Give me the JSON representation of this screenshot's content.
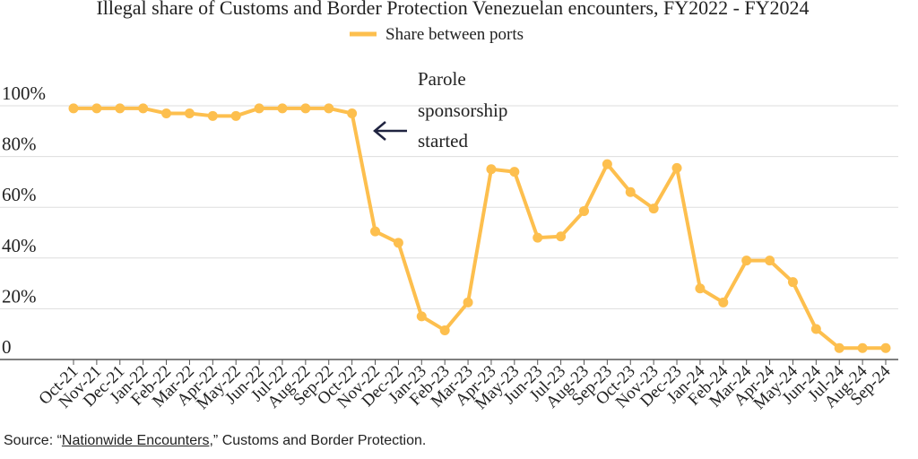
{
  "chart_data": {
    "type": "line",
    "title": "Illegal share of Customs and Border Protection Venezuelan encounters, FY2022 - FY2024",
    "legend": {
      "placement": "top-center"
    },
    "series": [
      {
        "name": "Share between ports",
        "color": "#FDBF4E",
        "values": [
          99,
          99,
          99,
          99,
          97,
          97,
          96,
          96,
          99,
          99,
          99,
          99,
          97,
          50.5,
          46,
          17,
          11.5,
          22.5,
          75,
          74,
          48,
          48.5,
          58.5,
          77,
          66,
          59.5,
          75.5,
          28,
          22.5,
          39,
          39,
          30.5,
          12,
          4.5,
          4.5,
          4.5
        ]
      }
    ],
    "categories": [
      "Oct-21",
      "Nov-21",
      "Dec-21",
      "Jan-22",
      "Feb-22",
      "Mar-22",
      "Apr-22",
      "May-22",
      "Jun-22",
      "Jul-22",
      "Aug-22",
      "Sep-22",
      "Oct-22",
      "Nov-22",
      "Dec-22",
      "Jan-23",
      "Feb-23",
      "Mar-23",
      "Apr-23",
      "May-23",
      "Jun-23",
      "Jul-23",
      "Aug-23",
      "Sep-23",
      "Oct-23",
      "Nov-23",
      "Dec-23",
      "Jan-24",
      "Feb-24",
      "Mar-24",
      "Apr-24",
      "May-24",
      "Jun-24",
      "Jul-24",
      "Aug-24",
      "Sep-24"
    ],
    "yticks": [
      {
        "v": 100,
        "label": "100%"
      },
      {
        "v": 80,
        "label": "80%"
      },
      {
        "v": 60,
        "label": "60%"
      },
      {
        "v": 40,
        "label": "40%"
      },
      {
        "v": 20,
        "label": "20%"
      },
      {
        "v": 0,
        "label": "0"
      }
    ],
    "ylim": [
      0,
      100
    ],
    "grid": true,
    "annotation": {
      "lines": [
        "Parole",
        "sponsorship",
        "started"
      ],
      "at": "Oct-22"
    }
  },
  "source": {
    "prefix": "Source: “",
    "link": "Nationwide Encounters",
    "suffix": ",” Customs and Border Protection."
  }
}
